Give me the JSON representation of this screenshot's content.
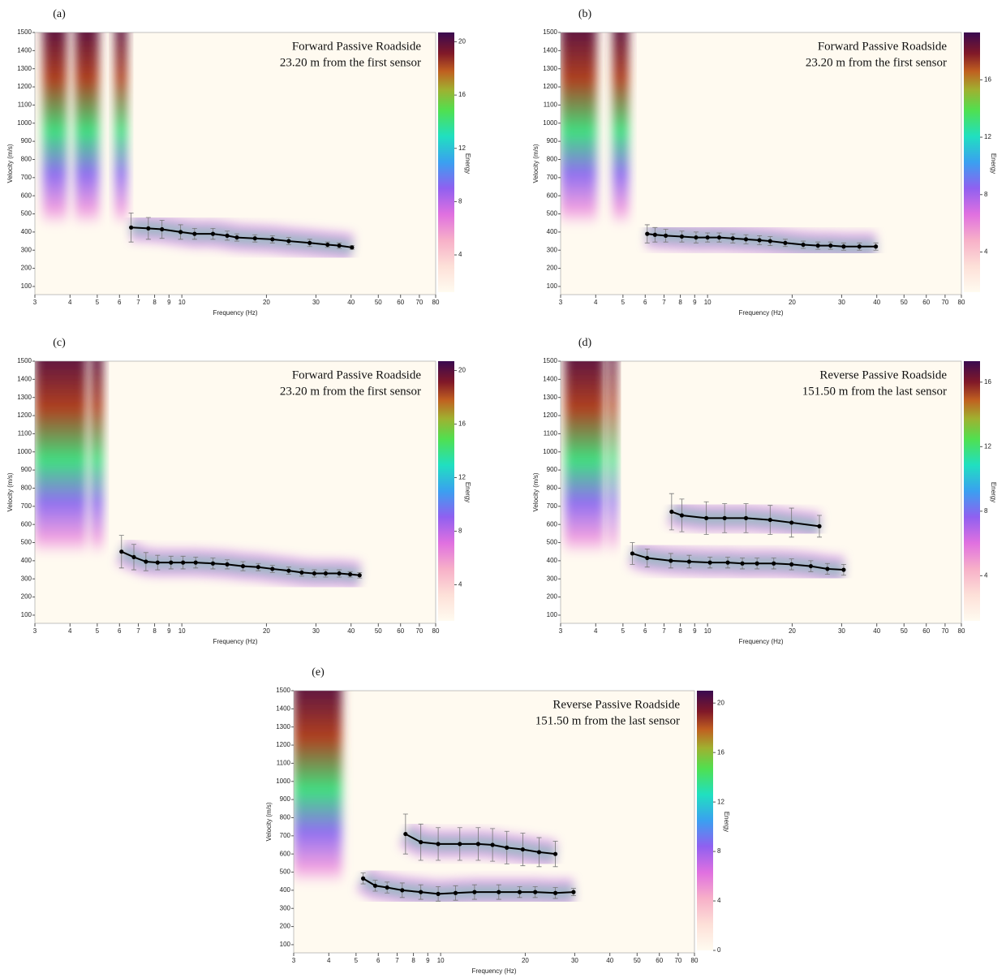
{
  "chart_data": [
    {
      "type": "line",
      "panel_label": "(a)",
      "annotation": [
        "Forward Passive Roadside",
        "23.20 m from the first sensor"
      ],
      "x_label": "Frequency (Hz)",
      "y_label": "Velocity (m/s)",
      "colorbar_label": "Energy",
      "x_scale": "log",
      "xlim": [
        3,
        80
      ],
      "xticks": [
        3,
        4,
        5,
        6,
        7,
        8,
        9,
        10,
        20,
        30,
        40,
        50,
        60,
        70,
        80
      ],
      "ylim": [
        55,
        1500
      ],
      "yticks": [
        100,
        200,
        300,
        400,
        500,
        600,
        700,
        800,
        900,
        1000,
        1100,
        1200,
        1300,
        1400,
        1500
      ],
      "clim": [
        1.2,
        20.7
      ],
      "cticks": [
        4,
        8,
        12,
        16,
        20
      ],
      "series": [
        {
          "color": "#000000",
          "x": [
            6.6,
            7.6,
            8.5,
            9.9,
            11.1,
            12.9,
            14.5,
            15.7,
            18.2,
            21.0,
            24.0,
            28.5,
            33.0,
            36.3,
            40.3
          ],
          "values": [
            425,
            420,
            415,
            400,
            390,
            390,
            380,
            370,
            365,
            360,
            350,
            340,
            330,
            325,
            315
          ],
          "errors": [
            80,
            60,
            50,
            40,
            30,
            30,
            25,
            20,
            20,
            20,
            20,
            20,
            15,
            15,
            10
          ]
        }
      ]
    },
    {
      "type": "line",
      "panel_label": "(b)",
      "annotation": [
        "Forward Passive Roadside",
        "23.20 m from the first sensor"
      ],
      "x_label": "Frequency (Hz)",
      "y_label": "Velocity (m/s)",
      "colorbar_label": "Energy",
      "x_scale": "log",
      "xlim": [
        3,
        80
      ],
      "xticks": [
        3,
        4,
        5,
        6,
        7,
        8,
        9,
        10,
        20,
        30,
        40,
        50,
        60,
        70,
        80
      ],
      "ylim": [
        55,
        1500
      ],
      "yticks": [
        100,
        200,
        300,
        400,
        500,
        600,
        700,
        800,
        900,
        1000,
        1100,
        1200,
        1300,
        1400,
        1500
      ],
      "clim": [
        1.2,
        19.3
      ],
      "cticks": [
        4,
        8,
        12,
        16
      ],
      "series": [
        {
          "color": "#000000",
          "x": [
            6.1,
            6.5,
            7.1,
            8.1,
            9.1,
            10.0,
            11.0,
            12.3,
            13.7,
            15.3,
            16.7,
            18.9,
            21.9,
            24.7,
            27.4,
            30.5,
            34.7,
            39.7
          ],
          "values": [
            390,
            385,
            380,
            375,
            370,
            370,
            370,
            365,
            360,
            355,
            350,
            340,
            330,
            325,
            325,
            320,
            320,
            320
          ],
          "errors": [
            50,
            40,
            35,
            30,
            30,
            25,
            25,
            25,
            25,
            25,
            25,
            20,
            20,
            20,
            20,
            20,
            20,
            20
          ]
        }
      ]
    },
    {
      "type": "line",
      "panel_label": "(c)",
      "annotation": [
        "Forward Passive Roadside",
        "23.20 m from the first sensor"
      ],
      "x_label": "Frequency (Hz)",
      "y_label": "Velocity (m/s)",
      "colorbar_label": "Energy",
      "x_scale": "log",
      "xlim": [
        3,
        80
      ],
      "xticks": [
        3,
        4,
        5,
        6,
        7,
        8,
        9,
        10,
        20,
        30,
        40,
        50,
        60,
        70,
        80
      ],
      "ylim": [
        55,
        1500
      ],
      "yticks": [
        100,
        200,
        300,
        400,
        500,
        600,
        700,
        800,
        900,
        1000,
        1100,
        1200,
        1300,
        1400,
        1500
      ],
      "clim": [
        1.3,
        20.7
      ],
      "cticks": [
        4,
        8,
        12,
        16,
        20
      ],
      "series": [
        {
          "color": "#000000",
          "x": [
            6.1,
            6.75,
            7.45,
            8.2,
            9.15,
            10.1,
            11.2,
            12.9,
            14.5,
            16.5,
            18.7,
            21.0,
            24.0,
            26.7,
            29.6,
            32.5,
            36.3,
            39.7,
            42.9
          ],
          "values": [
            450,
            420,
            395,
            390,
            390,
            390,
            390,
            385,
            380,
            370,
            365,
            355,
            345,
            335,
            330,
            330,
            330,
            325,
            320
          ],
          "errors": [
            90,
            70,
            50,
            40,
            35,
            35,
            30,
            30,
            25,
            25,
            20,
            20,
            20,
            20,
            20,
            20,
            20,
            15,
            15
          ]
        }
      ]
    },
    {
      "type": "line",
      "panel_label": "(d)",
      "annotation": [
        "Reverse Passive Roadside",
        "151.50 m from the last sensor"
      ],
      "x_label": "Frequency (Hz)",
      "y_label": "Velocity (m/s)",
      "colorbar_label": "Energy",
      "x_scale": "log",
      "xlim": [
        3,
        80
      ],
      "xticks": [
        3,
        4,
        5,
        6,
        7,
        8,
        9,
        10,
        20,
        30,
        40,
        50,
        60,
        70,
        80
      ],
      "ylim": [
        55,
        1500
      ],
      "yticks": [
        100,
        200,
        300,
        400,
        500,
        600,
        700,
        800,
        900,
        1000,
        1100,
        1200,
        1300,
        1400,
        1500
      ],
      "clim": [
        1.2,
        17.3
      ],
      "cticks": [
        4,
        8,
        12,
        16
      ],
      "series": [
        {
          "color": "#000000",
          "x": [
            5.4,
            6.1,
            7.4,
            8.6,
            10.2,
            11.8,
            13.3,
            15.0,
            17.2,
            19.9,
            23.3,
            26.7,
            30.5
          ],
          "values": [
            440,
            415,
            400,
            395,
            390,
            390,
            385,
            385,
            385,
            380,
            370,
            355,
            350
          ],
          "errors": [
            60,
            50,
            40,
            35,
            30,
            30,
            30,
            30,
            30,
            30,
            30,
            30,
            30
          ]
        },
        {
          "color": "#000000",
          "x": [
            7.45,
            8.1,
            9.9,
            11.5,
            13.7,
            16.7,
            19.9,
            25.0
          ],
          "values": [
            670,
            650,
            635,
            635,
            635,
            625,
            610,
            590
          ],
          "errors": [
            100,
            90,
            90,
            80,
            80,
            80,
            80,
            60
          ]
        }
      ]
    },
    {
      "type": "line",
      "panel_label": "(e)",
      "annotation": [
        "Reverse Passive Roadside",
        "151.50 m from the last sensor"
      ],
      "x_label": "Frequency (Hz)",
      "y_label": "Velocity (m/s)",
      "colorbar_label": "Energy",
      "x_scale": "log",
      "xlim": [
        3,
        80
      ],
      "xticks": [
        3,
        4,
        5,
        6,
        7,
        8,
        9,
        10,
        20,
        30,
        40,
        50,
        60,
        70,
        80
      ],
      "ylim": [
        55,
        1500
      ],
      "yticks": [
        100,
        200,
        300,
        400,
        500,
        600,
        700,
        800,
        900,
        1000,
        1100,
        1200,
        1300,
        1400,
        1500
      ],
      "clim": [
        0,
        21
      ],
      "cticks": [
        0,
        4,
        8,
        12,
        16,
        20
      ],
      "series": [
        {
          "color": "#000000",
          "x": [
            5.3,
            5.85,
            6.45,
            7.3,
            8.5,
            9.8,
            11.3,
            13.2,
            16.1,
            19.1,
            21.7,
            25.6,
            29.7
          ],
          "values": [
            465,
            425,
            415,
            400,
            390,
            380,
            385,
            390,
            390,
            390,
            390,
            385,
            390
          ],
          "errors": [
            30,
            30,
            30,
            40,
            40,
            40,
            40,
            40,
            40,
            30,
            30,
            30,
            20
          ]
        },
        {
          "color": "#000000",
          "x": [
            7.5,
            8.5,
            9.8,
            11.7,
            13.6,
            15.3,
            17.2,
            19.6,
            22.4,
            25.6
          ],
          "values": [
            710,
            665,
            655,
            655,
            655,
            650,
            635,
            625,
            610,
            600
          ],
          "errors": [
            110,
            100,
            90,
            90,
            90,
            90,
            90,
            90,
            80,
            70
          ]
        }
      ]
    }
  ]
}
